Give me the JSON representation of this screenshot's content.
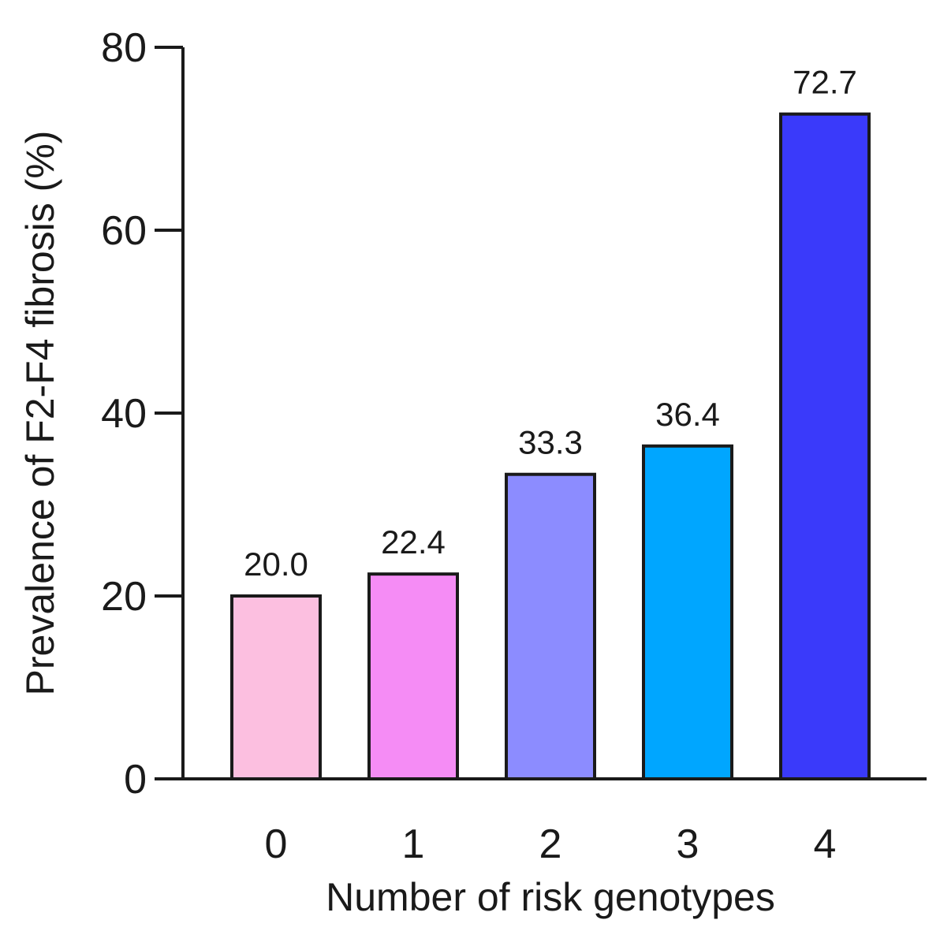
{
  "chart_data": {
    "type": "bar",
    "title": "",
    "xlabel": "Number of risk genotypes",
    "ylabel": "Prevalence of F2-F4 fibrosis (%)",
    "categories": [
      "0",
      "1",
      "2",
      "3",
      "4"
    ],
    "values": [
      20.0,
      22.4,
      33.3,
      36.4,
      72.7
    ],
    "data_labels": [
      "20.0",
      "22.4",
      "33.3",
      "36.4",
      "72.7"
    ],
    "bar_colors": [
      "#fcbfe0",
      "#f58cf5",
      "#8c8cff",
      "#00a6ff",
      "#3a3afa"
    ],
    "ylim": [
      0,
      80
    ],
    "yticks": [
      0,
      20,
      40,
      60,
      80
    ],
    "ytick_labels": [
      "0",
      "20",
      "40",
      "60",
      "80"
    ],
    "grid": false,
    "legend": "none"
  }
}
